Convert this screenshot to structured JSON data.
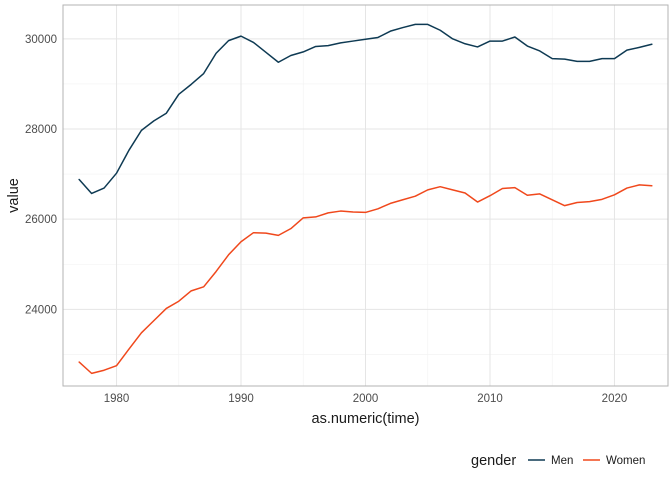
{
  "chart_data": {
    "type": "line",
    "xlabel": "as.numeric(time)",
    "ylabel": "value",
    "xlim": [
      1975.7,
      2024.3
    ],
    "ylim": [
      22300,
      30750
    ],
    "x_ticks": [
      "1980",
      "1990",
      "2000",
      "2010",
      "2020"
    ],
    "y_ticks": [
      "24000",
      "26000",
      "28000",
      "30000"
    ],
    "grid": true,
    "legend": {
      "title": "gender",
      "position": "bottom-right"
    },
    "x": [
      1977,
      1978,
      1979,
      1980,
      1981,
      1982,
      1983,
      1984,
      1985,
      1986,
      1987,
      1988,
      1989,
      1990,
      1991,
      1992,
      1993,
      1994,
      1995,
      1996,
      1997,
      1998,
      1999,
      2000,
      2001,
      2002,
      2003,
      2004,
      2005,
      2006,
      2007,
      2008,
      2009,
      2010,
      2011,
      2012,
      2013,
      2014,
      2015,
      2016,
      2017,
      2018,
      2019,
      2020,
      2021,
      2022,
      2023
    ],
    "series": [
      {
        "name": "Men",
        "color": "#0e3a53",
        "values": [
          26880,
          26570,
          26690,
          27020,
          27530,
          27970,
          28180,
          28350,
          28770,
          28990,
          29230,
          29680,
          29960,
          30060,
          29920,
          29700,
          29480,
          29630,
          29710,
          29830,
          29850,
          29910,
          29950,
          29990,
          30030,
          30170,
          30250,
          30320,
          30320,
          30190,
          30000,
          29890,
          29820,
          29950,
          29950,
          30040,
          29840,
          29730,
          29560,
          29550,
          29500,
          29500,
          29560,
          29560,
          29750,
          29810,
          29880
        ]
      },
      {
        "name": "Women",
        "color": "#f0481c",
        "values": [
          22830,
          22580,
          22650,
          22750,
          23120,
          23480,
          23750,
          24020,
          24180,
          24410,
          24500,
          24840,
          25210,
          25500,
          25700,
          25690,
          25640,
          25790,
          26030,
          26050,
          26140,
          26180,
          26160,
          26150,
          26230,
          26350,
          26430,
          26510,
          26650,
          26720,
          26650,
          26580,
          26380,
          26520,
          26680,
          26700,
          26530,
          26560,
          26430,
          26300,
          26370,
          26390,
          26440,
          26540,
          26690,
          26760,
          26740
        ]
      }
    ]
  }
}
